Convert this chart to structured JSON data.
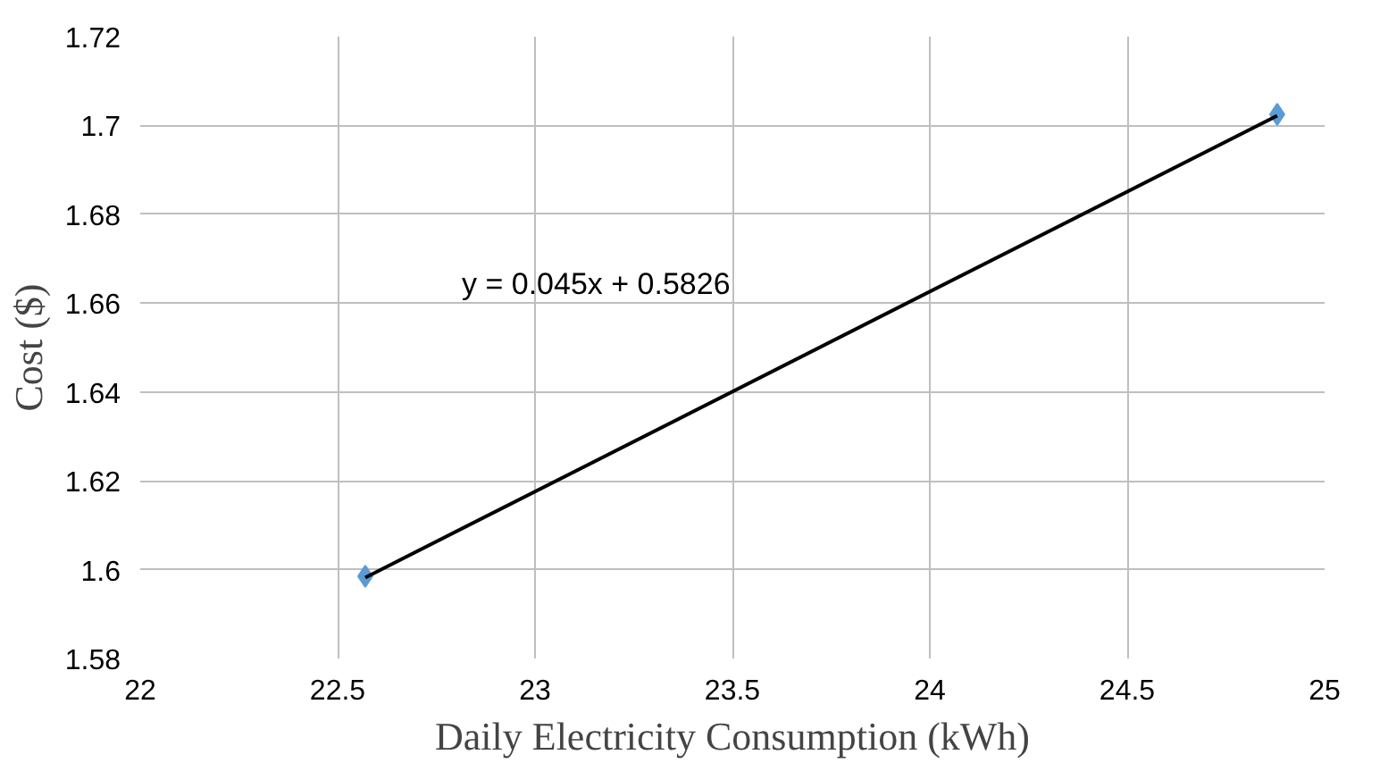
{
  "chart_data": {
    "type": "scatter",
    "xlabel": "Daily Electricity Consumption (kWh)",
    "ylabel": "Cost ($)",
    "x": [
      22.57,
      24.88
    ],
    "series": [
      {
        "color": "#5b9bd5",
        "marker": "diamond",
        "values": [
          1.5985,
          1.7025
        ]
      },
      {
        "type": "line",
        "color": "#000000",
        "values": [
          1.5982,
          1.7022
        ]
      }
    ],
    "annotations": [
      "y = 0.045x + 0.5826"
    ],
    "xlim": [
      22,
      25
    ],
    "xticks": [
      22,
      22.5,
      23,
      23.5,
      24,
      24.5,
      25
    ],
    "ylim": [
      1.58,
      1.72
    ],
    "yticks": [
      1.58,
      1.6,
      1.62,
      1.64,
      1.66,
      1.68,
      1.7,
      1.72
    ],
    "grid": true
  }
}
